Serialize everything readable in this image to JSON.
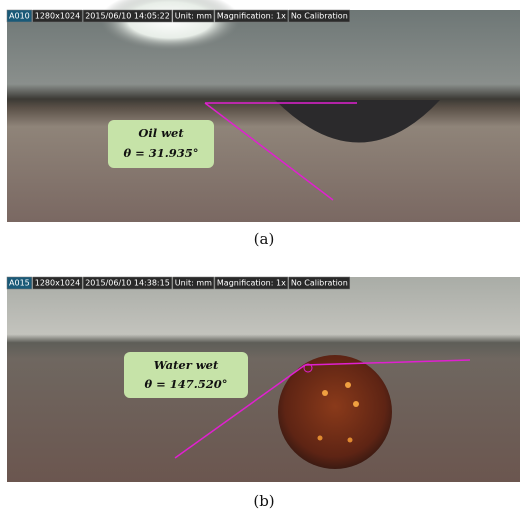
{
  "panels": [
    {
      "status": [
        "A010",
        "1280x1024",
        "2015/06/10 14:05:22",
        "Unit: mm",
        "Magnification:  1x",
        "No Calibration"
      ],
      "label": {
        "title": "Oil wet",
        "angle": "θ = 31.935°"
      },
      "caption": "(a)"
    },
    {
      "status": [
        "A015",
        "1280x1024",
        "2015/06/10 14:38:15",
        "Unit: mm",
        "Magnification:  1x",
        "No Calibration"
      ],
      "label": {
        "title": "Water wet",
        "angle": "θ = 147.520°"
      },
      "caption": "(b)"
    }
  ]
}
